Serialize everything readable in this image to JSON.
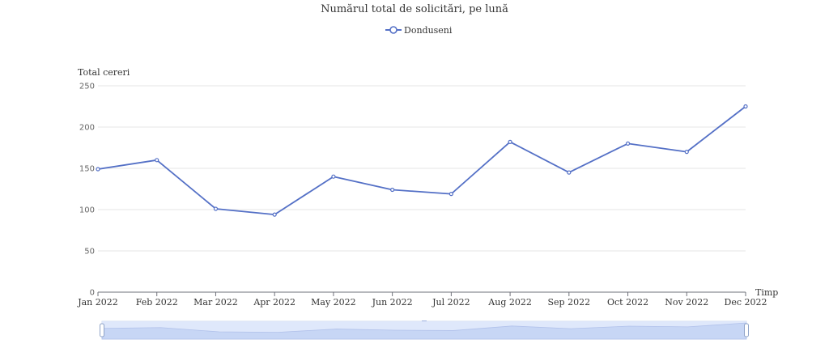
{
  "chart_data": {
    "type": "line",
    "title": "Numărul total de solicitări, pe lună",
    "xlabel": "Timp",
    "ylabel": "Total cereri",
    "categories": [
      "Jan 2022",
      "Feb 2022",
      "Mar 2022",
      "Apr 2022",
      "May 2022",
      "Jun 2022",
      "Jul 2022",
      "Aug 2022",
      "Sep 2022",
      "Oct 2022",
      "Nov 2022",
      "Dec 2022"
    ],
    "series": [
      {
        "name": "Donduseni",
        "values": [
          149,
          160,
          101,
          94,
          140,
          124,
          119,
          182,
          145,
          180,
          170,
          225
        ]
      }
    ],
    "ylim": [
      0,
      250
    ],
    "yticks": [
      0,
      50,
      100,
      150,
      200,
      250
    ],
    "grid": true,
    "legend": "top-center",
    "colors": {
      "series": "#5470c6",
      "grid": "#e6e6e6",
      "axis": "#6e7079",
      "zoom_fill": "#dbe6fb",
      "zoom_area": "#c3d3f5",
      "zoom_handle": "#ffffff",
      "zoom_border": "#d2dbee"
    },
    "datazoom": {
      "start_percent": 0,
      "end_percent": 100
    }
  }
}
